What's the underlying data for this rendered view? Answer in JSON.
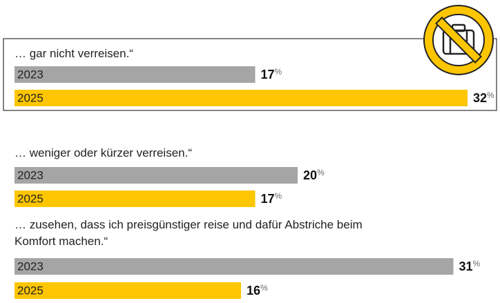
{
  "chart_data": {
    "type": "bar",
    "categories": [
      "… gar nicht verreisen.“",
      "… weniger oder kürzer verreisen.“",
      "… zusehen, dass ich preisgünstiger reise und dafür Abstriche beim Komfort machen.“"
    ],
    "series": [
      {
        "name": "2023",
        "color": "#a5a5a5",
        "values": [
          17,
          20,
          31
        ]
      },
      {
        "name": "2025",
        "color": "#fdc600",
        "values": [
          32,
          17,
          16
        ]
      }
    ],
    "value_unit": "%"
  }
}
